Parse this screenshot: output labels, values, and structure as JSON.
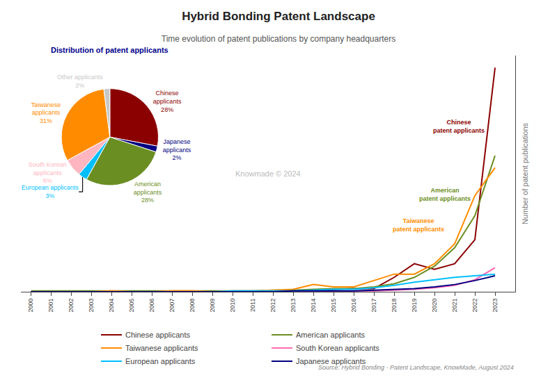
{
  "chart_data": [
    {
      "type": "line",
      "title": "Hybrid Bonding Patent Landscape",
      "subtitle": "Time evolution of patent publications by company headquarters",
      "source": "Source: Hybrid Bonding - Patent Landscape, KnowMade, August 2024",
      "watermark": "Knowmade © 2024",
      "ylabel": "Number of patent publications",
      "x": [
        2000,
        2001,
        2002,
        2003,
        2004,
        2005,
        2006,
        2007,
        2008,
        2009,
        2010,
        2011,
        2012,
        2013,
        2014,
        2015,
        2016,
        2017,
        2018,
        2019,
        2020,
        2021,
        2022,
        2023
      ],
      "xlim": [
        1999.5,
        2024.0
      ],
      "xticks": [
        2000,
        2001,
        2002,
        2003,
        2004,
        2005,
        2006,
        2007,
        2008,
        2009,
        2010,
        2011,
        2012,
        2013,
        2014,
        2015,
        2016,
        2017,
        2018,
        2019,
        2020,
        2021,
        2022,
        2023
      ],
      "ylim": [
        0,
        295
      ],
      "tick_labels": "x",
      "grid": false,
      "legend": "bottom",
      "series": [
        {
          "name": "Chinese applicants",
          "color": "#8B0000",
          "values": [
            0,
            0,
            0,
            0,
            0,
            0,
            0,
            0,
            0,
            0,
            0,
            0,
            1,
            1,
            2,
            3,
            4,
            4,
            18,
            35,
            28,
            35,
            65,
            280
          ]
        },
        {
          "name": "American applicants",
          "color": "#6B8E23",
          "values": [
            1,
            1,
            1,
            1,
            1,
            1,
            1,
            1,
            1,
            1,
            1,
            1,
            2,
            2,
            3,
            4,
            4,
            6,
            10,
            18,
            32,
            55,
            95,
            170
          ]
        },
        {
          "name": "Taiwanese applicants",
          "color": "#FF8C00",
          "values": [
            0,
            0,
            0,
            0,
            1,
            0,
            0,
            1,
            1,
            0,
            1,
            1,
            2,
            3,
            9,
            6,
            6,
            14,
            22,
            22,
            35,
            60,
            120,
            155
          ]
        },
        {
          "name": "South Korean applicants",
          "color": "#FF69B4",
          "values": [
            0,
            0,
            0,
            0,
            0,
            0,
            0,
            0,
            0,
            0,
            0,
            0,
            0,
            0,
            0,
            0,
            1,
            1,
            2,
            3,
            5,
            8,
            15,
            30
          ]
        },
        {
          "name": "European applicants",
          "color": "#00BFFF",
          "values": [
            0,
            0,
            0,
            0,
            0,
            0,
            0,
            0,
            0,
            0,
            1,
            1,
            1,
            1,
            2,
            3,
            3,
            5,
            8,
            12,
            15,
            18,
            20,
            22
          ]
        },
        {
          "name": "Japanese applicants",
          "color": "#000080",
          "values": [
            0,
            0,
            0,
            0,
            0,
            0,
            0,
            0,
            0,
            0,
            0,
            0,
            0,
            1,
            1,
            1,
            1,
            2,
            3,
            4,
            6,
            9,
            14,
            20
          ]
        }
      ],
      "annotations": [
        {
          "text": "Chinese\npatent applicants",
          "x": 2021.2,
          "y": 195,
          "color": "#8B0000"
        },
        {
          "text": "American\npatent applicants",
          "x": 2020.5,
          "y": 110,
          "color": "#6B8E23"
        },
        {
          "text": "Taiwanese\npatent applicants",
          "x": 2019.2,
          "y": 72,
          "color": "#FF8C00"
        }
      ]
    },
    {
      "type": "pie",
      "title": "Distribution of patent applicants",
      "categories": [
        "Chinese\napplicants",
        "Japanese\napplicants",
        "American\napplicants",
        "European applicants",
        "South Korean\napplicants",
        "Taiwanese\napplicants",
        "Other applicants"
      ],
      "values": [
        28,
        2,
        28,
        3,
        6,
        31,
        2
      ],
      "value_labels": [
        "28%",
        "2%",
        "28%",
        "3%",
        "6%",
        "31%",
        "2%"
      ],
      "colors": [
        "#8B0000",
        "#000080",
        "#6B8E23",
        "#00BFFF",
        "#FFB6C1",
        "#FF8C00",
        "#C8C8C8"
      ]
    }
  ]
}
